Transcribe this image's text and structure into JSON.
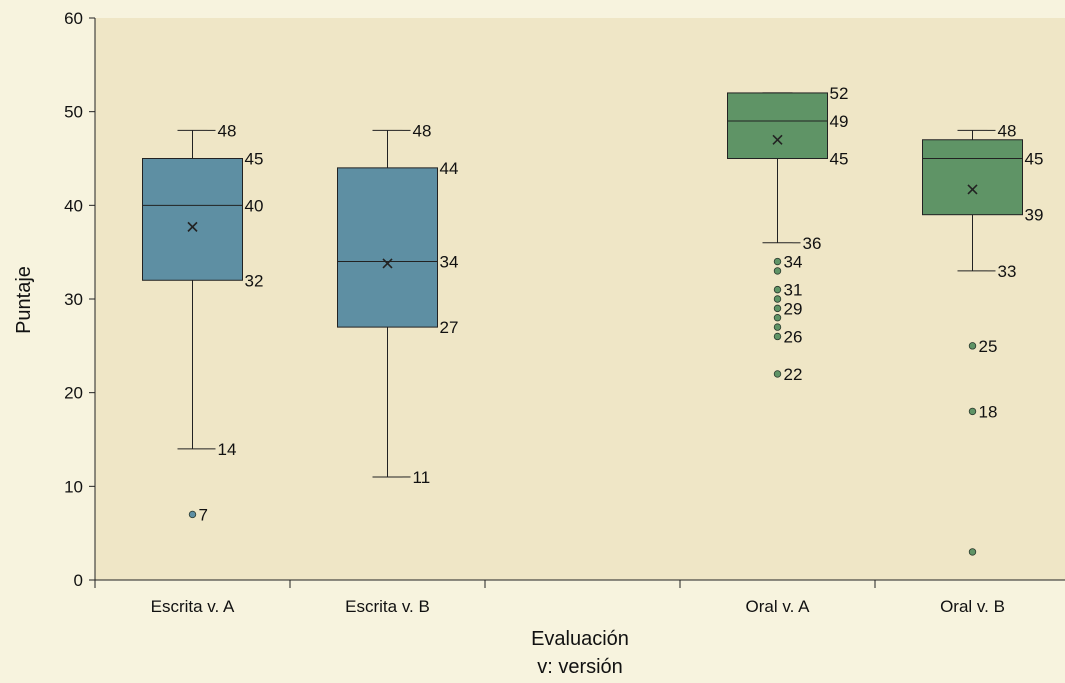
{
  "chart_data": {
    "type": "boxplot",
    "ylabel": "Puntaje",
    "xlabel_lines": [
      "Evaluación",
      "v: versión"
    ],
    "ylim": [
      0,
      60
    ],
    "yticks": [
      0,
      10,
      20,
      30,
      40,
      50,
      60
    ],
    "categories": [
      "Escrita v. A",
      "Escrita v. B",
      "",
      "Oral v. A",
      "Oral v. B"
    ],
    "colors": {
      "escrita_fill": "#5e8fa3",
      "oral_fill": "#5f9466",
      "plot_bg": "#efe6c6",
      "page_bg": "#f7f3de"
    },
    "boxes": [
      {
        "name": "Escrita v. A",
        "slot": 0,
        "color": "#5e8fa3",
        "whisker_low": 14,
        "q1": 32,
        "median": 40,
        "q3": 45,
        "whisker_high": 48,
        "mean": 37.7,
        "outliers": [
          7
        ],
        "labels": [
          {
            "value": 48,
            "text": "48",
            "anchor": "whisker"
          },
          {
            "value": 45,
            "text": "45",
            "anchor": "box"
          },
          {
            "value": 40,
            "text": "40",
            "anchor": "box"
          },
          {
            "value": 32,
            "text": "32",
            "anchor": "box"
          },
          {
            "value": 14,
            "text": "14",
            "anchor": "whisker"
          },
          {
            "value": 7,
            "text": "7",
            "anchor": "outlier"
          }
        ]
      },
      {
        "name": "Escrita v. B",
        "slot": 1,
        "color": "#5e8fa3",
        "whisker_low": 11,
        "q1": 27,
        "median": 34,
        "q3": 44,
        "whisker_high": 48,
        "mean": 33.8,
        "outliers": [],
        "labels": [
          {
            "value": 48,
            "text": "48",
            "anchor": "whisker"
          },
          {
            "value": 44,
            "text": "44",
            "anchor": "box"
          },
          {
            "value": 34,
            "text": "34",
            "anchor": "box"
          },
          {
            "value": 27,
            "text": "27",
            "anchor": "box"
          },
          {
            "value": 11,
            "text": "11",
            "anchor": "whisker"
          }
        ]
      },
      {
        "name": "Oral v. A",
        "slot": 3,
        "color": "#5f9466",
        "whisker_low": 36,
        "q1": 45,
        "median": 49,
        "q3": 52,
        "whisker_high": 52,
        "mean": 47,
        "outliers": [
          34,
          33,
          31,
          30,
          29,
          28,
          27,
          26,
          22
        ],
        "labels": [
          {
            "value": 52,
            "text": "52",
            "anchor": "box"
          },
          {
            "value": 49,
            "text": "49",
            "anchor": "box"
          },
          {
            "value": 45,
            "text": "45",
            "anchor": "box"
          },
          {
            "value": 36,
            "text": "36",
            "anchor": "whisker"
          },
          {
            "value": 34,
            "text": "34",
            "anchor": "outlier"
          },
          {
            "value": 31,
            "text": "31",
            "anchor": "outlier"
          },
          {
            "value": 29,
            "text": "29",
            "anchor": "outlier"
          },
          {
            "value": 26,
            "text": "26",
            "anchor": "outlier"
          },
          {
            "value": 22,
            "text": "22",
            "anchor": "outlier"
          }
        ]
      },
      {
        "name": "Oral v. B",
        "slot": 4,
        "color": "#5f9466",
        "whisker_low": 33,
        "q1": 39,
        "median": 45,
        "q3": 47,
        "whisker_high": 48,
        "mean": 41.7,
        "outliers": [
          25,
          18,
          3
        ],
        "labels": [
          {
            "value": 48,
            "text": "48",
            "anchor": "whisker"
          },
          {
            "value": 45,
            "text": "45",
            "anchor": "box"
          },
          {
            "value": 39,
            "text": "39",
            "anchor": "box"
          },
          {
            "value": 33,
            "text": "33",
            "anchor": "whisker"
          },
          {
            "value": 25,
            "text": "25",
            "anchor": "outlier"
          },
          {
            "value": 18,
            "text": "18",
            "anchor": "outlier"
          }
        ]
      }
    ]
  }
}
